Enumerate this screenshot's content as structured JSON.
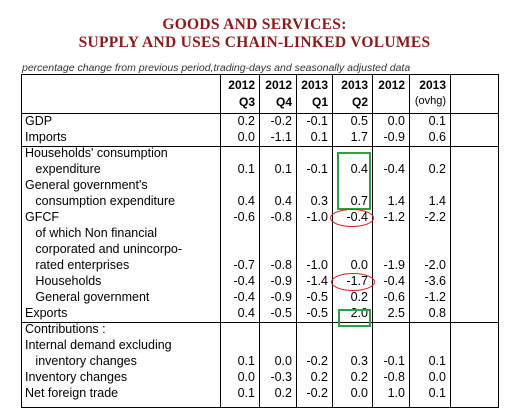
{
  "title_line1": "GOODS AND SERVICES:",
  "title_line2": "SUPPLY AND USES CHAIN-LINKED VOLUMES",
  "subtitle": "percentage change from previous period,trading-days and seasonally adjusted data",
  "columns": [
    {
      "top": "2012",
      "bottom": "Q3"
    },
    {
      "top": "2012",
      "bottom": "Q4"
    },
    {
      "top": "2013",
      "bottom": "Q1"
    },
    {
      "top": "2013",
      "bottom": "Q2"
    },
    {
      "top": "2012",
      "bottom": ""
    },
    {
      "top": "2013",
      "bottom": "(ovhg)"
    }
  ],
  "rows": [
    {
      "label": "GDP",
      "values": [
        "0.2",
        "-0.2",
        "-0.1",
        "0.5",
        "0.0",
        "0.1"
      ]
    },
    {
      "label": "Imports",
      "values": [
        "0.0",
        "-1.1",
        "0.1",
        "1.7",
        "-0.9",
        "0.6"
      ]
    },
    {
      "label": "Households' consumption",
      "values": []
    },
    {
      "label": "   expenditure",
      "values": [
        "0.1",
        "0.1",
        "-0.1",
        "0.4",
        "-0.4",
        "0.2"
      ]
    },
    {
      "label": "General government's",
      "values": []
    },
    {
      "label": "   consumption expenditure",
      "values": [
        "0.4",
        "0.4",
        "0.3",
        "0.7",
        "1.4",
        "1.4"
      ]
    },
    {
      "label": "GFCF",
      "values": [
        "-0.6",
        "-0.8",
        "-1.0",
        "-0.4",
        "-1.2",
        "-2.2"
      ]
    },
    {
      "label": "   of which Non financial",
      "values": []
    },
    {
      "label": "   corporated and unincorpo-",
      "values": []
    },
    {
      "label": "   rated enterprises",
      "values": [
        "-0.7",
        "-0.8",
        "-1.0",
        "0.0",
        "-1.9",
        "-2.0"
      ]
    },
    {
      "label": "   Households",
      "values": [
        "-0.4",
        "-0.9",
        "-1.4",
        "-1.7",
        "-0.4",
        "-3.6"
      ]
    },
    {
      "label": "   General government",
      "values": [
        "-0.4",
        "-0.9",
        "-0.5",
        "0.2",
        "-0.6",
        "-1.2"
      ]
    },
    {
      "label": "Exports",
      "values": [
        "0.4",
        "-0.5",
        "-0.5",
        "2.0",
        "2.5",
        "0.8"
      ]
    },
    {
      "label": "Contributions :",
      "values": []
    },
    {
      "label": "Internal demand excluding",
      "values": []
    },
    {
      "label": "   inventory changes",
      "values": [
        "0.1",
        "0.0",
        "-0.2",
        "0.3",
        "-0.1",
        "0.1"
      ]
    },
    {
      "label": "Inventory changes",
      "values": [
        "0.0",
        "-0.3",
        "0.2",
        "0.2",
        "-0.8",
        "0.0"
      ]
    },
    {
      "label": "Net foreign trade",
      "values": [
        "0.1",
        "0.2",
        "-0.2",
        "0.0",
        "1.0",
        "0.1"
      ]
    }
  ]
}
